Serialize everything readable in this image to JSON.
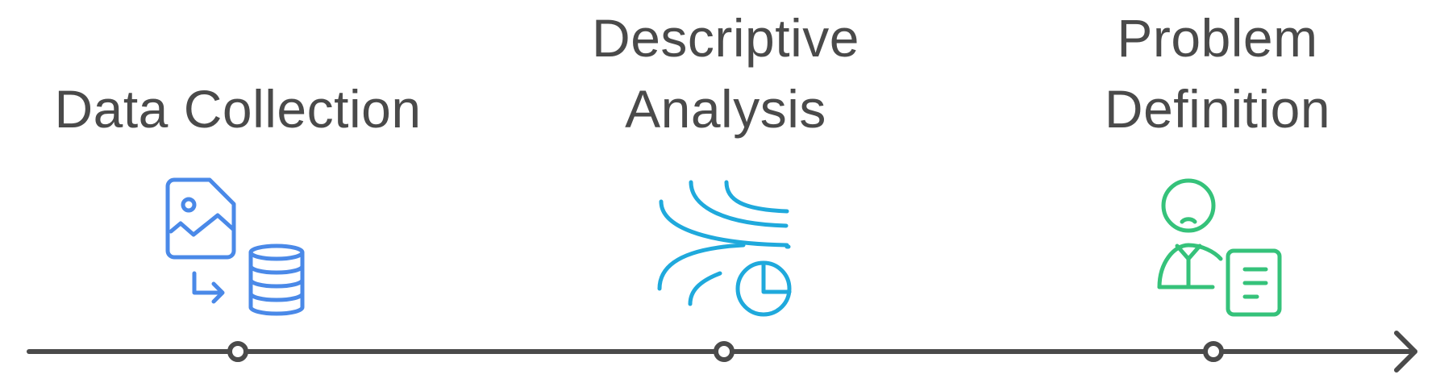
{
  "steps": [
    {
      "lines": [
        "Data Collection"
      ],
      "icon": "file-image-to-database-icon",
      "color": "#4a89e8"
    },
    {
      "lines": [
        "Descriptive",
        "Analysis"
      ],
      "icon": "wind-pie-chart-icon",
      "color": "#1fa9dc"
    },
    {
      "lines": [
        "Problem",
        "Definition"
      ],
      "icon": "person-document-icon",
      "color": "#35c27a"
    }
  ],
  "timeline_color": "#4a4a4a"
}
